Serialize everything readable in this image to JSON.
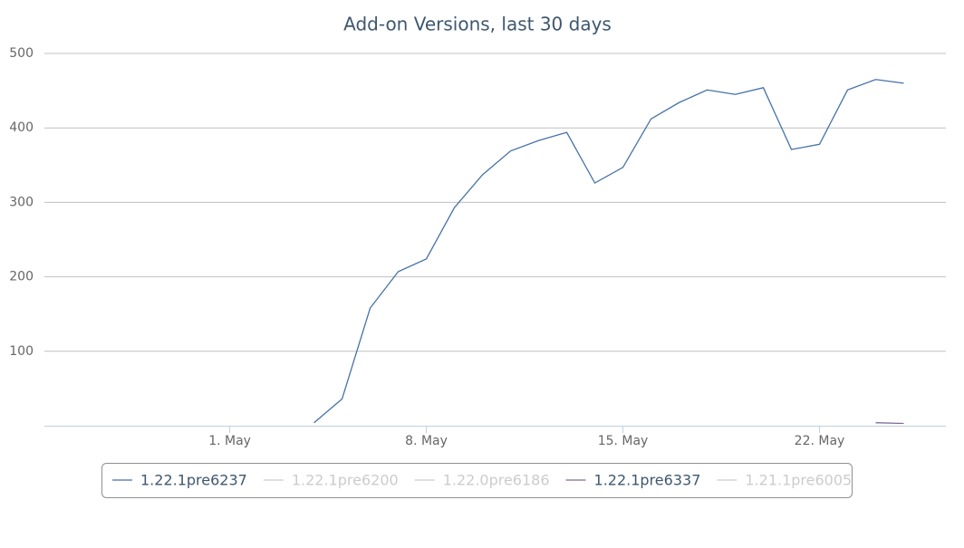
{
  "chart_data": {
    "type": "line",
    "title": "Add-on Versions, last 30 days",
    "xlim": [
      -5.6,
      26.5
    ],
    "xticks": [
      {
        "value": 1,
        "label": "1. May"
      },
      {
        "value": 8,
        "label": "8. May"
      },
      {
        "value": 15,
        "label": "15. May"
      },
      {
        "value": 22,
        "label": "22. May"
      }
    ],
    "ylim": [
      0,
      500
    ],
    "yticks": [
      100,
      200,
      300,
      400,
      500
    ],
    "grid": true,
    "series": [
      {
        "name": "1.22.1pre6237",
        "color": "#4572a7",
        "visible": true,
        "x": [
          4,
          5,
          6,
          7,
          8,
          9,
          10,
          11,
          12,
          13,
          14,
          15,
          16,
          17,
          18,
          19,
          20,
          21,
          22,
          23,
          24,
          25
        ],
        "values": [
          4,
          36,
          158,
          207,
          224,
          293,
          337,
          369,
          383,
          394,
          326,
          347,
          412,
          434,
          451,
          445,
          454,
          371,
          378,
          451,
          465,
          460
        ]
      },
      {
        "name": "1.22.1pre6200",
        "visible": false
      },
      {
        "name": "1.22.0pre6186",
        "visible": false
      },
      {
        "name": "1.22.1pre6337",
        "color": "#80699b",
        "visible": true,
        "x": [
          24,
          25
        ],
        "values": [
          4,
          3
        ]
      },
      {
        "name": "1.21.1pre6005",
        "visible": false
      }
    ]
  }
}
